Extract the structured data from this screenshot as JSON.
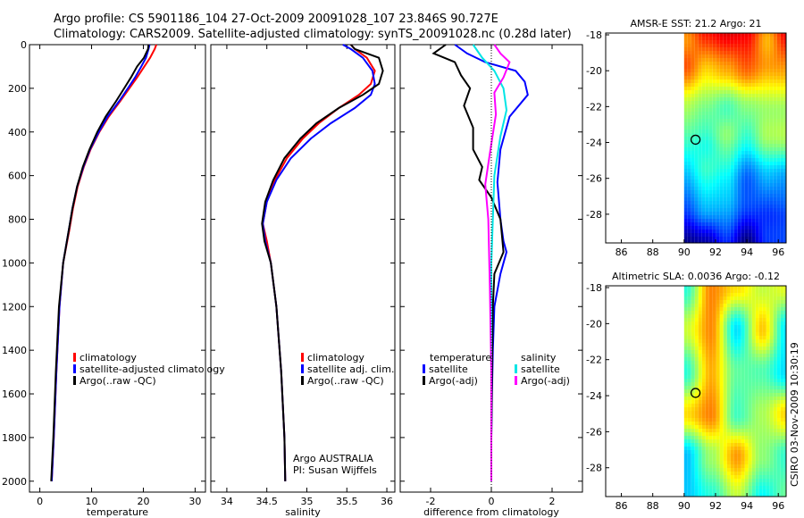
{
  "title_line1": "Argo profile: CS 5901186_104 27-Oct-2009 20091028_107 23.846S 90.727E",
  "title_line2": "Climatology: CARS2009. Satellite-adjusted climatology: synTS_20091028.nc (0.28d later)",
  "side_label": "CSIRO 03-Nov-2009 10:30:19",
  "colors": {
    "climatology": "#ff0000",
    "satellite": "#0000ff",
    "argo": "#000000",
    "sal_satellite": "#00e5e5",
    "sal_argo": "#ff00ff"
  },
  "chart_data": [
    {
      "id": "temperature",
      "type": "line",
      "xlabel": "temperature",
      "xlim": [
        -2,
        32
      ],
      "ylim": [
        2050,
        0
      ],
      "xticks": [
        0,
        10,
        20,
        30
      ],
      "yticks": [
        0,
        200,
        400,
        600,
        800,
        1000,
        1200,
        1400,
        1600,
        1800,
        2000
      ],
      "yticklabels": [
        "0",
        "200",
        "400",
        "600",
        "800",
        "1000",
        "1200",
        "1400",
        "1600",
        "1800",
        "2000"
      ],
      "legend": [
        "climatology",
        "satellite-adjusted climatology",
        "Argo(..raw -QC)"
      ],
      "series": [
        {
          "name": "climatology",
          "color": "#ff0000",
          "x": [
            22.5,
            22.2,
            21.3,
            20.2,
            18.8,
            17.3,
            15.5,
            13.3,
            11.5,
            9.8,
            8.5,
            7.3,
            6.4,
            5.7,
            4.5,
            3.8,
            3.2,
            2.7,
            2.3
          ],
          "y": [
            0,
            20,
            60,
            100,
            150,
            200,
            260,
            330,
            400,
            480,
            560,
            650,
            750,
            850,
            1000,
            1200,
            1500,
            1800,
            2000
          ]
        },
        {
          "name": "satellite-adjusted climatology",
          "color": "#0000ff",
          "x": [
            21.2,
            21.0,
            20.5,
            19.6,
            18.4,
            17.0,
            15.3,
            13.1,
            11.4,
            9.7,
            8.4,
            7.2,
            6.3,
            5.6,
            4.5,
            3.8,
            3.2,
            2.7,
            2.3
          ],
          "y": [
            0,
            20,
            60,
            100,
            150,
            200,
            260,
            330,
            400,
            480,
            560,
            650,
            750,
            850,
            1000,
            1200,
            1500,
            1800,
            2000
          ]
        },
        {
          "name": "Argo(..raw -QC)",
          "color": "#000000",
          "x": [
            21.0,
            20.9,
            20.1,
            18.8,
            17.6,
            16.3,
            14.7,
            12.7,
            11.1,
            9.6,
            8.3,
            7.2,
            6.3,
            5.6,
            4.5,
            3.7,
            3.1,
            2.6,
            2.2
          ],
          "y": [
            0,
            20,
            60,
            100,
            150,
            200,
            260,
            330,
            400,
            480,
            560,
            650,
            750,
            850,
            1000,
            1200,
            1500,
            1800,
            2000
          ]
        }
      ]
    },
    {
      "id": "salinity",
      "type": "line",
      "xlabel": "salinity",
      "xlim": [
        33.8,
        36.1
      ],
      "ylim": [
        2050,
        0
      ],
      "xticks": [
        34,
        34.5,
        35,
        35.5,
        36
      ],
      "xticklabels": [
        "34",
        "34.5",
        "35",
        "35.5",
        "36"
      ],
      "yticks": [],
      "yticklabels": [],
      "legend": [
        "climatology",
        "satellite adj. clim.",
        "Argo(..raw -QC)"
      ],
      "annotation": [
        "Argo AUSTRALIA",
        "PI: Susan Wijffels"
      ],
      "series": [
        {
          "name": "climatology",
          "color": "#ff0000",
          "x": [
            35.55,
            35.6,
            35.75,
            35.85,
            35.8,
            35.65,
            35.4,
            35.15,
            34.95,
            34.75,
            34.6,
            34.5,
            34.45,
            34.5,
            34.55,
            34.62,
            34.68,
            34.72,
            34.73
          ],
          "y": [
            0,
            20,
            60,
            120,
            180,
            230,
            290,
            360,
            430,
            520,
            620,
            720,
            820,
            900,
            1000,
            1200,
            1500,
            1800,
            2000
          ]
        },
        {
          "name": "satellite adj. clim.",
          "color": "#0000ff",
          "x": [
            35.45,
            35.55,
            35.7,
            35.82,
            35.85,
            35.8,
            35.6,
            35.3,
            35.05,
            34.8,
            34.62,
            34.5,
            34.45,
            34.48,
            34.55,
            34.62,
            34.68,
            34.72,
            34.73
          ],
          "y": [
            0,
            20,
            60,
            120,
            180,
            230,
            290,
            360,
            430,
            520,
            620,
            720,
            820,
            900,
            1000,
            1200,
            1500,
            1800,
            2000
          ]
        },
        {
          "name": "Argo(..raw -QC)",
          "color": "#000000",
          "x": [
            35.55,
            35.6,
            35.9,
            35.95,
            35.9,
            35.7,
            35.4,
            35.12,
            34.92,
            34.72,
            34.58,
            34.48,
            34.44,
            34.47,
            34.55,
            34.62,
            34.68,
            34.72,
            34.73
          ],
          "y": [
            0,
            20,
            60,
            120,
            180,
            230,
            290,
            360,
            430,
            520,
            620,
            720,
            820,
            900,
            1000,
            1200,
            1500,
            1800,
            2000
          ]
        }
      ]
    },
    {
      "id": "difference",
      "type": "line",
      "xlabel": "difference from climatology",
      "xlim": [
        -3,
        3
      ],
      "ylim": [
        2050,
        0
      ],
      "xticks": [
        -2,
        0,
        2
      ],
      "yticks": [],
      "yticklabels": [],
      "legend_temperature": {
        "title": "temperature",
        "items": [
          "satellite",
          "Argo(-adj)"
        ]
      },
      "legend_salinity": {
        "title": "salinity",
        "items": [
          "satellite",
          "Argo(-adj)"
        ]
      },
      "series": [
        {
          "name": "temperature satellite",
          "color": "#0000ff",
          "x": [
            -1.2,
            -0.8,
            -0.2,
            0.8,
            1.1,
            1.2,
            0.6,
            0.3,
            0.2,
            0.3,
            0.4,
            0.5,
            0.3,
            0.1,
            0.05,
            0.02,
            0.0,
            0.0
          ],
          "y": [
            0,
            40,
            80,
            120,
            170,
            230,
            330,
            480,
            630,
            800,
            900,
            950,
            1050,
            1200,
            1400,
            1600,
            1800,
            2000
          ]
        },
        {
          "name": "temperature Argo(-adj)",
          "color": "#000000",
          "x": [
            -1.5,
            -1.9,
            -1.2,
            -1.0,
            -0.7,
            -0.9,
            -0.6,
            -0.6,
            -0.3,
            -0.4,
            0.0,
            0.3,
            0.4,
            0.1,
            0.05,
            0.02,
            0.0,
            0.0
          ],
          "y": [
            0,
            40,
            80,
            140,
            200,
            280,
            380,
            480,
            560,
            620,
            700,
            800,
            950,
            1050,
            1200,
            1500,
            1800,
            2000
          ]
        },
        {
          "name": "salinity satellite",
          "color": "#00e5e5",
          "x": [
            -0.6,
            -0.3,
            0.1,
            0.4,
            0.5,
            0.3,
            0.1,
            0.05,
            0.0,
            0.0,
            0.0,
            0.0
          ],
          "y": [
            0,
            60,
            120,
            200,
            300,
            420,
            600,
            800,
            1000,
            1400,
            1800,
            2000
          ]
        },
        {
          "name": "salinity Argo(-adj)",
          "color": "#ff00ff",
          "x": [
            0.1,
            0.3,
            0.6,
            0.4,
            0.1,
            0.15,
            -0.05,
            -0.2,
            -0.1,
            -0.05,
            0.0,
            0.0
          ],
          "y": [
            0,
            40,
            80,
            150,
            220,
            320,
            500,
            640,
            800,
            1100,
            1500,
            2000
          ]
        }
      ]
    },
    {
      "id": "sst_map",
      "type": "heatmap",
      "title": "AMSR-E SST: 21.2 Argo: 21",
      "xlim": [
        85,
        96.5
      ],
      "ylim": [
        -17.9,
        -29.6
      ],
      "xticks": [
        86,
        88,
        90,
        92,
        94,
        96
      ],
      "yticks": [
        -18,
        -20,
        -22,
        -24,
        -26,
        -28
      ],
      "marker": {
        "lon": 90.727,
        "lat": -23.846
      }
    },
    {
      "id": "sla_map",
      "type": "heatmap",
      "title": "Altimetric SLA: 0.0036 Argo: -0.12",
      "xlim": [
        85,
        96.5
      ],
      "ylim": [
        -17.9,
        -29.6
      ],
      "xticks": [
        86,
        88,
        90,
        92,
        94,
        96
      ],
      "yticks": [
        -18,
        -20,
        -22,
        -24,
        -26,
        -28
      ],
      "marker": {
        "lon": 90.727,
        "lat": -23.846
      }
    }
  ]
}
